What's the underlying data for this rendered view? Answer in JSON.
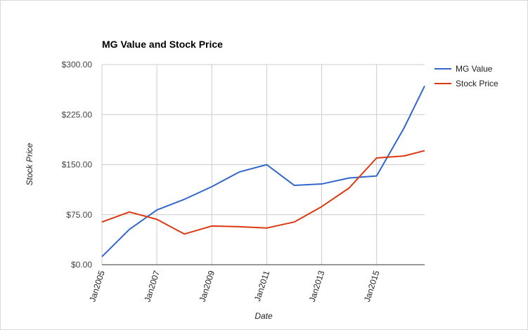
{
  "chart_data": {
    "type": "line",
    "title": "MG Value and Stock Price",
    "xlabel": "Date",
    "ylabel": "Stock Price",
    "x": [
      "2005-01",
      "2006-01",
      "2007-01",
      "2008-01",
      "2009-01",
      "2010-01",
      "2011-01",
      "2012-01",
      "2013-01",
      "2014-01",
      "2015-01",
      "2016-01",
      "2016-10"
    ],
    "x_tick_labels": [
      "Jan2005",
      "Jan2007",
      "Jan2009",
      "Jan2011",
      "Jan2013",
      "Jan2015"
    ],
    "x_tick_values": [
      "2005-01",
      "2007-01",
      "2009-01",
      "2011-01",
      "2013-01",
      "2015-01"
    ],
    "y_tick_labels": [
      "$0.00",
      "$75.00",
      "$150.00",
      "$225.00",
      "$300.00"
    ],
    "y_tick_values": [
      0,
      75,
      150,
      225,
      300
    ],
    "ylim": [
      0,
      300
    ],
    "grid": true,
    "legend_position": "right",
    "series": [
      {
        "name": "MG Value",
        "color": "#3366cc",
        "values": [
          12,
          53,
          82,
          98,
          117,
          139,
          150,
          119,
          121,
          130,
          133,
          205,
          268
        ]
      },
      {
        "name": "Stock Price",
        "color": "#dc3912",
        "values": [
          64,
          79,
          68,
          46,
          58,
          57,
          55,
          64,
          87,
          115,
          160,
          163,
          171
        ]
      }
    ]
  }
}
